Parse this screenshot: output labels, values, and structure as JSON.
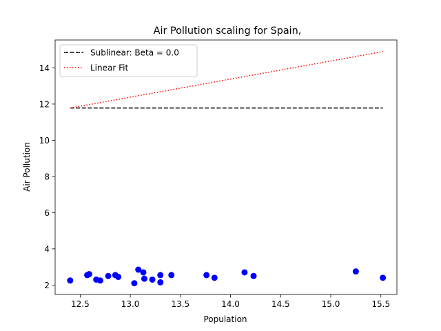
{
  "chart_data": {
    "type": "scatter",
    "title": "Air Pollution scaling for Spain,",
    "xlabel": "Population",
    "ylabel": "Air Pollution",
    "xlim": [
      12.25,
      15.66
    ],
    "ylim": [
      1.48,
      15.54
    ],
    "x_ticks": [
      12.5,
      13.0,
      13.5,
      14.0,
      14.5,
      15.0,
      15.5
    ],
    "x_tick_labels": [
      "12.5",
      "13.0",
      "13.5",
      "14.0",
      "14.5",
      "15.0",
      "15.5"
    ],
    "y_ticks": [
      2,
      4,
      6,
      8,
      10,
      12,
      14
    ],
    "y_tick_labels": [
      "2",
      "4",
      "6",
      "8",
      "10",
      "12",
      "14"
    ],
    "grid": false,
    "legend_position": "upper-left",
    "points": {
      "color": "#0000ff",
      "x": [
        12.4,
        12.57,
        12.59,
        12.66,
        12.7,
        12.78,
        12.85,
        12.88,
        13.04,
        13.08,
        13.13,
        13.14,
        13.22,
        13.3,
        13.3,
        13.41,
        13.76,
        13.84,
        14.14,
        14.23,
        15.25,
        15.52
      ],
      "y": [
        2.25,
        2.55,
        2.6,
        2.3,
        2.25,
        2.5,
        2.55,
        2.45,
        2.1,
        2.85,
        2.7,
        2.35,
        2.3,
        2.15,
        2.55,
        2.55,
        2.55,
        2.4,
        2.7,
        2.5,
        2.75,
        2.4
      ]
    },
    "series": [
      {
        "name": "Sublinear: Beta = 0.0",
        "x": [
          12.4,
          15.52
        ],
        "y": [
          11.78,
          11.78
        ],
        "color": "#000000",
        "style": "dashed"
      },
      {
        "name": "Linear Fit",
        "x": [
          12.4,
          15.52
        ],
        "y": [
          11.78,
          14.9
        ],
        "color": "#ff0000",
        "style": "dotted"
      }
    ]
  }
}
